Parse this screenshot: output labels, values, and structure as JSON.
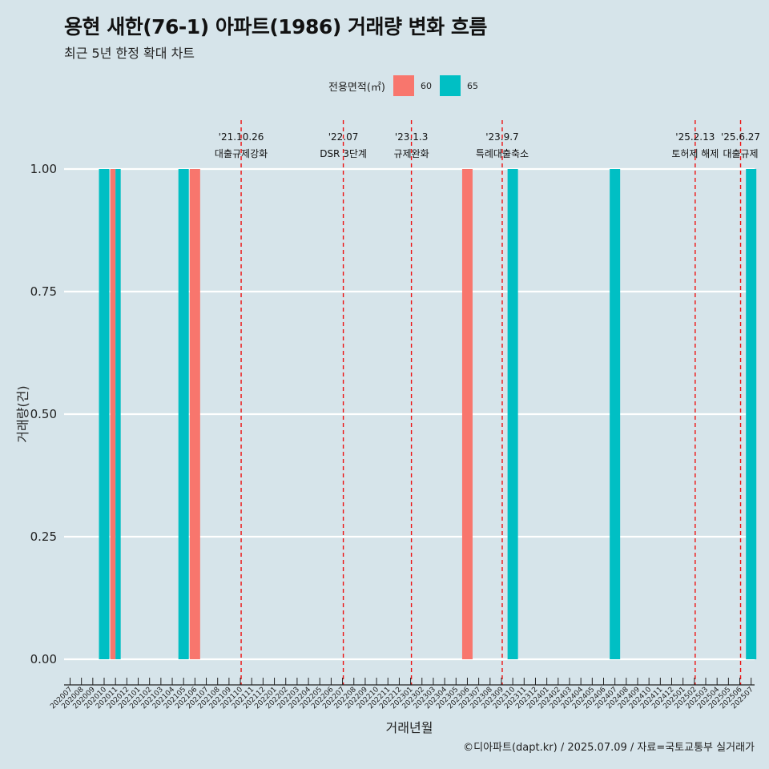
{
  "title": "용현 새한(76-1) 아파트(1986) 거래량 변화 흐름",
  "subtitle": "최근 5년 한정 확대 차트",
  "legend": {
    "title": "전용면적(㎡)",
    "items": [
      {
        "label": "60",
        "color": "#f8766d"
      },
      {
        "label": "65",
        "color": "#00bfc4"
      }
    ]
  },
  "caption": "©디아파트(dapt.kr) / 2025.07.09 / 자료=국토교통부 실거래가",
  "chart_data": {
    "type": "bar",
    "title": "용현 새한(76-1) 아파트(1986) 거래량 변화 흐름",
    "xlabel": "거래년월",
    "ylabel": "거래량(건)",
    "ylim": [
      0,
      1
    ],
    "yticks": [
      "0.00",
      "0.25",
      "0.50",
      "0.75",
      "1.00"
    ],
    "categories": [
      "202007",
      "202008",
      "202009",
      "202010",
      "202011",
      "202012",
      "202101",
      "202102",
      "202103",
      "202104",
      "202105",
      "202106",
      "202107",
      "202108",
      "202109",
      "202110",
      "202111",
      "202112",
      "202201",
      "202202",
      "202203",
      "202204",
      "202205",
      "202206",
      "202207",
      "202208",
      "202209",
      "202210",
      "202211",
      "202212",
      "202301",
      "202302",
      "202303",
      "202304",
      "202305",
      "202306",
      "202307",
      "202308",
      "202309",
      "202310",
      "202311",
      "202312",
      "202401",
      "202402",
      "202403",
      "202404",
      "202405",
      "202406",
      "202407",
      "202408",
      "202409",
      "202410",
      "202411",
      "202412",
      "202501",
      "202502",
      "202503",
      "202504",
      "202505",
      "202506",
      "202507"
    ],
    "bars": [
      {
        "x": "202010",
        "series": "65",
        "value": 1
      },
      {
        "x": "202011",
        "series": "60",
        "value": 1
      },
      {
        "x": "202011",
        "series": "65",
        "value": 1
      },
      {
        "x": "202105",
        "series": "65",
        "value": 1
      },
      {
        "x": "202106",
        "series": "60",
        "value": 1
      },
      {
        "x": "202306",
        "series": "60",
        "value": 1
      },
      {
        "x": "202310",
        "series": "65",
        "value": 1
      },
      {
        "x": "202407",
        "series": "65",
        "value": 1
      },
      {
        "x": "202507",
        "series": "65",
        "value": 1
      }
    ],
    "annotations": [
      {
        "x": "202110",
        "date": "'21.10.26",
        "label": "대출규제강화"
      },
      {
        "x": "202207",
        "date": "'22.07",
        "label": "DSR 3단계"
      },
      {
        "x": "202301",
        "date": "'23.1.3",
        "label": "규제완화"
      },
      {
        "x": "202309",
        "date": "'23.9.7",
        "label": "특례대출축소"
      },
      {
        "x": "202502",
        "date": "'25.2.13",
        "label": "토허제 해제"
      },
      {
        "x": "202506",
        "date": "'25.6.27",
        "label": "대출규제"
      }
    ],
    "grid": true,
    "legend_position": "top"
  }
}
